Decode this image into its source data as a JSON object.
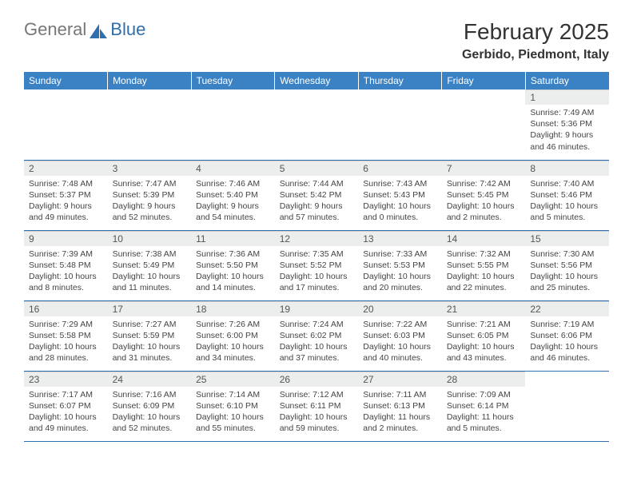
{
  "logo": {
    "text1": "General",
    "text2": "Blue"
  },
  "title": "February 2025",
  "location": "Gerbido, Piedmont, Italy",
  "colors": {
    "header_bg": "#3b82c4",
    "row_divider": "#2f6fad",
    "daynum_bg": "#eceded",
    "logo_blue": "#2f6fad"
  },
  "weekdays": [
    "Sunday",
    "Monday",
    "Tuesday",
    "Wednesday",
    "Thursday",
    "Friday",
    "Saturday"
  ],
  "weeks": [
    [
      null,
      null,
      null,
      null,
      null,
      null,
      {
        "n": "1",
        "sunrise": "Sunrise: 7:49 AM",
        "sunset": "Sunset: 5:36 PM",
        "daylight": "Daylight: 9 hours and 46 minutes."
      }
    ],
    [
      {
        "n": "2",
        "sunrise": "Sunrise: 7:48 AM",
        "sunset": "Sunset: 5:37 PM",
        "daylight": "Daylight: 9 hours and 49 minutes."
      },
      {
        "n": "3",
        "sunrise": "Sunrise: 7:47 AM",
        "sunset": "Sunset: 5:39 PM",
        "daylight": "Daylight: 9 hours and 52 minutes."
      },
      {
        "n": "4",
        "sunrise": "Sunrise: 7:46 AM",
        "sunset": "Sunset: 5:40 PM",
        "daylight": "Daylight: 9 hours and 54 minutes."
      },
      {
        "n": "5",
        "sunrise": "Sunrise: 7:44 AM",
        "sunset": "Sunset: 5:42 PM",
        "daylight": "Daylight: 9 hours and 57 minutes."
      },
      {
        "n": "6",
        "sunrise": "Sunrise: 7:43 AM",
        "sunset": "Sunset: 5:43 PM",
        "daylight": "Daylight: 10 hours and 0 minutes."
      },
      {
        "n": "7",
        "sunrise": "Sunrise: 7:42 AM",
        "sunset": "Sunset: 5:45 PM",
        "daylight": "Daylight: 10 hours and 2 minutes."
      },
      {
        "n": "8",
        "sunrise": "Sunrise: 7:40 AM",
        "sunset": "Sunset: 5:46 PM",
        "daylight": "Daylight: 10 hours and 5 minutes."
      }
    ],
    [
      {
        "n": "9",
        "sunrise": "Sunrise: 7:39 AM",
        "sunset": "Sunset: 5:48 PM",
        "daylight": "Daylight: 10 hours and 8 minutes."
      },
      {
        "n": "10",
        "sunrise": "Sunrise: 7:38 AM",
        "sunset": "Sunset: 5:49 PM",
        "daylight": "Daylight: 10 hours and 11 minutes."
      },
      {
        "n": "11",
        "sunrise": "Sunrise: 7:36 AM",
        "sunset": "Sunset: 5:50 PM",
        "daylight": "Daylight: 10 hours and 14 minutes."
      },
      {
        "n": "12",
        "sunrise": "Sunrise: 7:35 AM",
        "sunset": "Sunset: 5:52 PM",
        "daylight": "Daylight: 10 hours and 17 minutes."
      },
      {
        "n": "13",
        "sunrise": "Sunrise: 7:33 AM",
        "sunset": "Sunset: 5:53 PM",
        "daylight": "Daylight: 10 hours and 20 minutes."
      },
      {
        "n": "14",
        "sunrise": "Sunrise: 7:32 AM",
        "sunset": "Sunset: 5:55 PM",
        "daylight": "Daylight: 10 hours and 22 minutes."
      },
      {
        "n": "15",
        "sunrise": "Sunrise: 7:30 AM",
        "sunset": "Sunset: 5:56 PM",
        "daylight": "Daylight: 10 hours and 25 minutes."
      }
    ],
    [
      {
        "n": "16",
        "sunrise": "Sunrise: 7:29 AM",
        "sunset": "Sunset: 5:58 PM",
        "daylight": "Daylight: 10 hours and 28 minutes."
      },
      {
        "n": "17",
        "sunrise": "Sunrise: 7:27 AM",
        "sunset": "Sunset: 5:59 PM",
        "daylight": "Daylight: 10 hours and 31 minutes."
      },
      {
        "n": "18",
        "sunrise": "Sunrise: 7:26 AM",
        "sunset": "Sunset: 6:00 PM",
        "daylight": "Daylight: 10 hours and 34 minutes."
      },
      {
        "n": "19",
        "sunrise": "Sunrise: 7:24 AM",
        "sunset": "Sunset: 6:02 PM",
        "daylight": "Daylight: 10 hours and 37 minutes."
      },
      {
        "n": "20",
        "sunrise": "Sunrise: 7:22 AM",
        "sunset": "Sunset: 6:03 PM",
        "daylight": "Daylight: 10 hours and 40 minutes."
      },
      {
        "n": "21",
        "sunrise": "Sunrise: 7:21 AM",
        "sunset": "Sunset: 6:05 PM",
        "daylight": "Daylight: 10 hours and 43 minutes."
      },
      {
        "n": "22",
        "sunrise": "Sunrise: 7:19 AM",
        "sunset": "Sunset: 6:06 PM",
        "daylight": "Daylight: 10 hours and 46 minutes."
      }
    ],
    [
      {
        "n": "23",
        "sunrise": "Sunrise: 7:17 AM",
        "sunset": "Sunset: 6:07 PM",
        "daylight": "Daylight: 10 hours and 49 minutes."
      },
      {
        "n": "24",
        "sunrise": "Sunrise: 7:16 AM",
        "sunset": "Sunset: 6:09 PM",
        "daylight": "Daylight: 10 hours and 52 minutes."
      },
      {
        "n": "25",
        "sunrise": "Sunrise: 7:14 AM",
        "sunset": "Sunset: 6:10 PM",
        "daylight": "Daylight: 10 hours and 55 minutes."
      },
      {
        "n": "26",
        "sunrise": "Sunrise: 7:12 AM",
        "sunset": "Sunset: 6:11 PM",
        "daylight": "Daylight: 10 hours and 59 minutes."
      },
      {
        "n": "27",
        "sunrise": "Sunrise: 7:11 AM",
        "sunset": "Sunset: 6:13 PM",
        "daylight": "Daylight: 11 hours and 2 minutes."
      },
      {
        "n": "28",
        "sunrise": "Sunrise: 7:09 AM",
        "sunset": "Sunset: 6:14 PM",
        "daylight": "Daylight: 11 hours and 5 minutes."
      },
      null
    ]
  ]
}
